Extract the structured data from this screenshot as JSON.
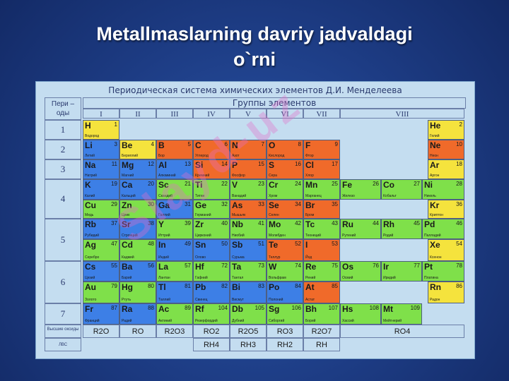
{
  "slide_title_line1": "Metallmaslarning davriy jadvaldagi",
  "slide_title_line2": "o`rni",
  "table_title": "Периодическая система химических элементов Д.И. Менделеева",
  "periods_header": "Пери – оды",
  "groups_header": "Группы элементов",
  "groups": [
    "I",
    "II",
    "III",
    "IV",
    "V",
    "VI",
    "VII",
    "VIII"
  ],
  "periods": [
    "1",
    "2",
    "3",
    "4",
    "5",
    "6",
    "7"
  ],
  "oxides_label": "Высшие оксиды",
  "hydrides_label": "ЛВС",
  "oxides": [
    "R2O",
    "RO",
    "R2O3",
    "RO2",
    "R2O5",
    "RO3",
    "R2O7",
    "RO4"
  ],
  "hydrides": [
    "RH4",
    "RH3",
    "RH2",
    "RH"
  ],
  "watermark": "Slayd-uz",
  "legend_colors": {
    "s": "#f5e33d",
    "metal": "#3d7fe6",
    "nonmetal": "#f06a2a",
    "d": "#7fe04a"
  },
  "elements": [
    {
      "sym": "H",
      "num": "1",
      "name": "Водород"
    },
    {
      "sym": "He",
      "num": "2",
      "name": "Гелий"
    },
    {
      "sym": "Li",
      "num": "3",
      "name": "Литий"
    },
    {
      "sym": "Be",
      "num": "4",
      "name": "Бериллий"
    },
    {
      "sym": "B",
      "num": "5",
      "name": "Бор"
    },
    {
      "sym": "C",
      "num": "6",
      "name": "Углерод"
    },
    {
      "sym": "N",
      "num": "7",
      "name": "Азот"
    },
    {
      "sym": "O",
      "num": "8",
      "name": "Кислород"
    },
    {
      "sym": "F",
      "num": "9",
      "name": "Фтор"
    },
    {
      "sym": "Ne",
      "num": "10",
      "name": "Неон"
    },
    {
      "sym": "Na",
      "num": "11",
      "name": "Натрий"
    },
    {
      "sym": "Mg",
      "num": "12",
      "name": "Магний"
    },
    {
      "sym": "Al",
      "num": "13",
      "name": "Алюминий"
    },
    {
      "sym": "Si",
      "num": "14",
      "name": "Кремний"
    },
    {
      "sym": "P",
      "num": "15",
      "name": "Фосфор"
    },
    {
      "sym": "S",
      "num": "16",
      "name": "Сера"
    },
    {
      "sym": "Cl",
      "num": "17",
      "name": "Хлор"
    },
    {
      "sym": "Ar",
      "num": "18",
      "name": "Аргон"
    },
    {
      "sym": "K",
      "num": "19",
      "name": "Калий"
    },
    {
      "sym": "Ca",
      "num": "20",
      "name": "Кальций"
    },
    {
      "sym": "Sc",
      "num": "21",
      "name": "Скандий"
    },
    {
      "sym": "Ti",
      "num": "22",
      "name": "Титан"
    },
    {
      "sym": "V",
      "num": "23",
      "name": "Ванадий"
    },
    {
      "sym": "Cr",
      "num": "24",
      "name": "Хром"
    },
    {
      "sym": "Mn",
      "num": "25",
      "name": "Марганец"
    },
    {
      "sym": "Fe",
      "num": "26",
      "name": "Железо"
    },
    {
      "sym": "Co",
      "num": "27",
      "name": "Кобальт"
    },
    {
      "sym": "Ni",
      "num": "28",
      "name": "Никель"
    },
    {
      "sym": "Cu",
      "num": "29",
      "name": "Медь"
    },
    {
      "sym": "Zn",
      "num": "30",
      "name": "Цинк"
    },
    {
      "sym": "Ga",
      "num": "31",
      "name": "Галлий"
    },
    {
      "sym": "Ge",
      "num": "32",
      "name": "Германий"
    },
    {
      "sym": "As",
      "num": "33",
      "name": "Мышьяк"
    },
    {
      "sym": "Se",
      "num": "34",
      "name": "Селен"
    },
    {
      "sym": "Br",
      "num": "35",
      "name": "Бром"
    },
    {
      "sym": "Kr",
      "num": "36",
      "name": "Криптон"
    },
    {
      "sym": "Rb",
      "num": "37",
      "name": "Рубидий"
    },
    {
      "sym": "Sr",
      "num": "38",
      "name": "Стронций"
    },
    {
      "sym": "Y",
      "num": "39",
      "name": "Иттрий"
    },
    {
      "sym": "Zr",
      "num": "40",
      "name": "Цирконий"
    },
    {
      "sym": "Nb",
      "num": "41",
      "name": "Ниобий"
    },
    {
      "sym": "Mo",
      "num": "42",
      "name": "Молибден"
    },
    {
      "sym": "Tc",
      "num": "43",
      "name": "Технеций"
    },
    {
      "sym": "Ru",
      "num": "44",
      "name": "Рутений"
    },
    {
      "sym": "Rh",
      "num": "45",
      "name": "Родий"
    },
    {
      "sym": "Pd",
      "num": "46",
      "name": "Палладий"
    },
    {
      "sym": "Ag",
      "num": "47",
      "name": "Серебро"
    },
    {
      "sym": "Cd",
      "num": "48",
      "name": "Кадмий"
    },
    {
      "sym": "In",
      "num": "49",
      "name": "Индий"
    },
    {
      "sym": "Sn",
      "num": "50",
      "name": "Олово"
    },
    {
      "sym": "Sb",
      "num": "51",
      "name": "Сурьма"
    },
    {
      "sym": "Te",
      "num": "52",
      "name": "Теллур"
    },
    {
      "sym": "I",
      "num": "53",
      "name": "Йод"
    },
    {
      "sym": "Xe",
      "num": "54",
      "name": "Ксенон"
    },
    {
      "sym": "Cs",
      "num": "55",
      "name": "Цезий"
    },
    {
      "sym": "Ba",
      "num": "56",
      "name": "Барий"
    },
    {
      "sym": "La",
      "num": "57",
      "name": "Лантан"
    },
    {
      "sym": "Hf",
      "num": "72",
      "name": "Гафний"
    },
    {
      "sym": "Ta",
      "num": "73",
      "name": "Тантал"
    },
    {
      "sym": "W",
      "num": "74",
      "name": "Вольфрам"
    },
    {
      "sym": "Re",
      "num": "75",
      "name": "Рений"
    },
    {
      "sym": "Os",
      "num": "76",
      "name": "Осмий"
    },
    {
      "sym": "Ir",
      "num": "77",
      "name": "Иридий"
    },
    {
      "sym": "Pt",
      "num": "78",
      "name": "Платина"
    },
    {
      "sym": "Au",
      "num": "79",
      "name": "Золото"
    },
    {
      "sym": "Hg",
      "num": "80",
      "name": "Ртуть"
    },
    {
      "sym": "Tl",
      "num": "81",
      "name": "Таллий"
    },
    {
      "sym": "Pb",
      "num": "82",
      "name": "Свинец"
    },
    {
      "sym": "Bi",
      "num": "83",
      "name": "Висмут"
    },
    {
      "sym": "Po",
      "num": "84",
      "name": "Полоний"
    },
    {
      "sym": "At",
      "num": "85",
      "name": "Астат"
    },
    {
      "sym": "Rn",
      "num": "86",
      "name": "Радон"
    },
    {
      "sym": "Fr",
      "num": "87",
      "name": "Франций"
    },
    {
      "sym": "Ra",
      "num": "88",
      "name": "Радий"
    },
    {
      "sym": "Ac",
      "num": "89",
      "name": "Актиний"
    },
    {
      "sym": "Rf",
      "num": "104",
      "name": "Резерфордий"
    },
    {
      "sym": "Db",
      "num": "105",
      "name": "Дубний"
    },
    {
      "sym": "Sg",
      "num": "106",
      "name": "Сиборгий"
    },
    {
      "sym": "Bh",
      "num": "107",
      "name": "Борий"
    },
    {
      "sym": "Hs",
      "num": "108",
      "name": "Хассий"
    },
    {
      "sym": "Mt",
      "num": "109",
      "name": "Мейтнерий"
    }
  ]
}
